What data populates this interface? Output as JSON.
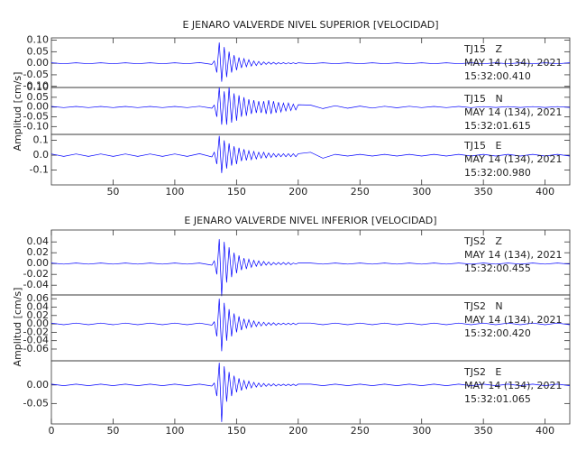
{
  "chart_data": [
    {
      "type": "line",
      "title": "E JENARO VALVERDE NIVEL SUPERIOR [VELOCIDAD]",
      "ylabel": "Amplitud [cm/s]",
      "color": "#0000ff",
      "xlim": [
        0,
        420
      ],
      "xticks": [
        50,
        100,
        150,
        200,
        250,
        300,
        350,
        400
      ],
      "x": [
        0,
        10,
        20,
        30,
        40,
        50,
        60,
        70,
        80,
        90,
        100,
        110,
        120,
        130,
        132,
        134,
        136,
        138,
        140,
        142,
        144,
        146,
        148,
        150,
        152,
        154,
        156,
        158,
        160,
        162,
        164,
        166,
        168,
        170,
        172,
        174,
        176,
        178,
        180,
        182,
        184,
        186,
        188,
        190,
        192,
        194,
        196,
        198,
        200,
        210,
        220,
        230,
        240,
        250,
        260,
        270,
        280,
        290,
        300,
        310,
        320,
        330,
        340,
        350,
        360,
        370,
        380,
        390,
        400,
        410,
        420
      ],
      "panels": [
        {
          "ylim": [
            -0.105,
            0.11
          ],
          "yticks": [
            {
              "value": -0.1,
              "label": "-0.10"
            },
            -0.05,
            {
              "value": 0,
              "label": "0.00"
            },
            0.05,
            {
              "value": 0.1,
              "label": "0.10"
            }
          ],
          "annotations": [
            "TJ15   Z",
            "MAY 14 (134), 2021",
            "15:32:00.410"
          ],
          "values": [
            0.002,
            -0.002,
            0.002,
            -0.002,
            0.002,
            -0.002,
            0.002,
            -0.002,
            0.002,
            -0.002,
            0.002,
            -0.002,
            0.003,
            -0.005,
            0.01,
            -0.04,
            0.09,
            -0.08,
            0.07,
            -0.06,
            0.05,
            -0.04,
            0.035,
            -0.03,
            0.025,
            -0.02,
            0.02,
            -0.015,
            0.015,
            -0.012,
            0.01,
            -0.01,
            0.008,
            -0.007,
            0.006,
            -0.005,
            0.005,
            -0.004,
            0.004,
            -0.004,
            0.003,
            -0.003,
            0.003,
            -0.003,
            0.002,
            -0.002,
            0.002,
            -0.002,
            0.002,
            -0.002,
            0.002,
            -0.002,
            0.002,
            -0.002,
            0.002,
            -0.002,
            0.002,
            -0.002,
            0.002,
            -0.002,
            0.002,
            -0.002,
            0.002,
            -0.002,
            0.002,
            -0.002,
            0.002,
            -0.002,
            0.002,
            -0.002,
            0.002
          ]
        },
        {
          "ylim": [
            -0.14,
            0.1
          ],
          "yticks": [
            {
              "value": -0.1,
              "label": "-0.10"
            },
            -0.05,
            {
              "value": 0,
              "label": "0.00"
            },
            0.05,
            {
              "value": 0.1,
              "label": "0.10"
            }
          ],
          "annotations": [
            "TJ15   N",
            "MAY 14 (134), 2021",
            "15:32:01.615"
          ],
          "values": [
            0.003,
            -0.003,
            0.003,
            -0.003,
            0.003,
            -0.003,
            0.003,
            -0.003,
            0.003,
            -0.003,
            0.003,
            -0.003,
            0.004,
            -0.006,
            0.01,
            -0.05,
            0.1,
            -0.09,
            0.08,
            -0.09,
            0.1,
            -0.08,
            0.07,
            -0.07,
            0.06,
            -0.05,
            0.05,
            -0.045,
            0.04,
            -0.035,
            0.035,
            -0.03,
            0.03,
            -0.03,
            0.03,
            -0.035,
            0.035,
            -0.035,
            0.03,
            -0.03,
            0.025,
            -0.025,
            0.02,
            -0.02,
            0.02,
            -0.018,
            0.015,
            -0.015,
            0.012,
            0.01,
            -0.008,
            0.007,
            -0.006,
            0.005,
            -0.005,
            0.004,
            -0.004,
            0.004,
            -0.003,
            0.003,
            -0.003,
            0.003,
            -0.003,
            0.002,
            -0.002,
            0.002,
            -0.002,
            0.002,
            -0.002,
            0.002,
            -0.002
          ]
        },
        {
          "ylim": [
            -0.2,
            0.14
          ],
          "yticks": [
            -0.1,
            {
              "value": 0,
              "label": "0.0"
            },
            0.1
          ],
          "annotations": [
            "TJ15   E",
            "MAY 14 (134), 2021",
            "15:32:00.980"
          ],
          "values": [
            0.008,
            -0.008,
            0.008,
            -0.008,
            0.008,
            -0.008,
            0.008,
            -0.008,
            0.008,
            -0.008,
            0.008,
            -0.008,
            0.01,
            -0.012,
            0.02,
            -0.06,
            0.13,
            -0.12,
            0.1,
            -0.09,
            0.08,
            -0.07,
            0.06,
            -0.06,
            0.05,
            -0.04,
            0.04,
            -0.035,
            0.03,
            -0.03,
            0.025,
            -0.025,
            0.02,
            -0.02,
            0.02,
            -0.018,
            0.015,
            -0.015,
            0.012,
            -0.012,
            0.01,
            -0.01,
            0.01,
            -0.01,
            0.01,
            -0.01,
            0.01,
            -0.01,
            0.01,
            0.02,
            -0.02,
            0.006,
            -0.006,
            0.006,
            -0.006,
            0.006,
            -0.006,
            0.006,
            -0.006,
            0.006,
            -0.006,
            0.006,
            -0.006,
            0.006,
            -0.006,
            0.006,
            -0.006,
            0.006,
            -0.006,
            0.006,
            -0.006
          ]
        }
      ]
    },
    {
      "type": "line",
      "title": "E JENARO VALVERDE NIVEL INFERIOR [VELOCIDAD]",
      "ylabel": "Amplitud [cm/s]",
      "color": "#0000ff",
      "xlim": [
        0,
        420
      ],
      "xticks": [
        0,
        50,
        100,
        150,
        200,
        250,
        300,
        350,
        400
      ],
      "x": [
        0,
        10,
        20,
        30,
        40,
        50,
        60,
        70,
        80,
        90,
        100,
        110,
        120,
        130,
        132,
        134,
        136,
        138,
        140,
        142,
        144,
        146,
        148,
        150,
        152,
        154,
        156,
        158,
        160,
        162,
        164,
        166,
        168,
        170,
        172,
        174,
        176,
        178,
        180,
        182,
        184,
        186,
        188,
        190,
        192,
        194,
        196,
        198,
        200,
        210,
        220,
        230,
        240,
        250,
        260,
        270,
        280,
        290,
        300,
        310,
        320,
        330,
        340,
        350,
        360,
        370,
        380,
        390,
        400,
        410,
        420
      ],
      "panels": [
        {
          "ylim": [
            -0.058,
            0.062
          ],
          "yticks": [
            -0.04,
            -0.02,
            {
              "value": 0,
              "label": "0.00"
            },
            0.02,
            0.04
          ],
          "annotations": [
            "TJS2   Z",
            "MAY 14 (134), 2021",
            "15:32:00.455"
          ],
          "values": [
            0.001,
            -0.001,
            0.001,
            -0.001,
            0.001,
            -0.001,
            0.001,
            -0.001,
            0.001,
            -0.001,
            0.001,
            -0.001,
            0.001,
            -0.003,
            0.005,
            -0.02,
            0.045,
            -0.06,
            0.04,
            -0.035,
            0.03,
            -0.025,
            0.02,
            -0.018,
            0.015,
            -0.012,
            0.01,
            -0.01,
            0.008,
            -0.007,
            0.006,
            -0.005,
            0.005,
            -0.004,
            0.004,
            -0.003,
            0.003,
            -0.003,
            0.002,
            -0.002,
            0.002,
            -0.002,
            0.002,
            -0.002,
            0.002,
            -0.002,
            0.001,
            -0.001,
            0.001,
            0.001,
            -0.001,
            0.001,
            -0.001,
            0.001,
            -0.001,
            0.001,
            -0.001,
            0.001,
            -0.001,
            0.001,
            -0.001,
            0.001,
            -0.001,
            0.001,
            -0.001,
            0.001,
            -0.001,
            0.001,
            -0.001,
            0.001,
            -0.001
          ]
        },
        {
          "ylim": [
            -0.088,
            0.069
          ],
          "yticks": [
            -0.06,
            -0.04,
            -0.02,
            {
              "value": 0,
              "label": "0.00"
            },
            0.02,
            0.04,
            0.06
          ],
          "annotations": [
            "TJS2   N",
            "MAY 14 (134), 2021",
            "15:32:00.420"
          ],
          "values": [
            0.002,
            -0.002,
            0.002,
            -0.002,
            0.002,
            -0.002,
            0.002,
            -0.002,
            0.002,
            -0.002,
            0.002,
            -0.002,
            0.002,
            -0.003,
            0.005,
            -0.03,
            0.06,
            -0.065,
            0.05,
            -0.04,
            0.035,
            -0.03,
            0.025,
            -0.02,
            0.018,
            -0.015,
            0.012,
            -0.01,
            0.01,
            -0.008,
            0.007,
            -0.006,
            0.005,
            -0.005,
            0.004,
            -0.004,
            0.003,
            -0.003,
            0.003,
            -0.003,
            0.002,
            -0.002,
            0.002,
            -0.002,
            0.002,
            -0.002,
            0.002,
            -0.002,
            0.002,
            0.002,
            -0.002,
            0.002,
            -0.002,
            0.002,
            -0.002,
            0.002,
            -0.002,
            0.002,
            -0.002,
            0.002,
            -0.002,
            0.002,
            -0.002,
            0.002,
            -0.002,
            0.002,
            -0.002,
            0.002,
            -0.002,
            0.002,
            -0.002
          ]
        },
        {
          "ylim": [
            -0.105,
            0.065
          ],
          "yticks": [
            -0.05,
            {
              "value": 0,
              "label": "0.00"
            }
          ],
          "annotations": [
            "TJS2   E",
            "MAY 14 (134), 2021",
            "15:32:01.065"
          ],
          "values": [
            0.002,
            -0.002,
            0.002,
            -0.002,
            0.002,
            -0.002,
            0.002,
            -0.002,
            0.002,
            -0.002,
            0.002,
            -0.002,
            0.002,
            -0.003,
            0.005,
            -0.03,
            0.06,
            -0.1,
            0.05,
            -0.045,
            0.035,
            -0.03,
            0.025,
            -0.02,
            0.018,
            -0.015,
            0.012,
            -0.01,
            0.01,
            -0.008,
            0.007,
            -0.006,
            0.005,
            -0.005,
            0.004,
            -0.004,
            0.003,
            -0.003,
            0.003,
            -0.003,
            0.002,
            -0.002,
            0.002,
            -0.002,
            0.002,
            -0.002,
            0.002,
            -0.002,
            0.002,
            0.002,
            -0.002,
            0.002,
            -0.002,
            0.002,
            -0.002,
            0.002,
            -0.002,
            0.002,
            -0.002,
            0.002,
            -0.002,
            0.002,
            -0.002,
            0.002,
            -0.002,
            0.002,
            -0.002,
            0.002,
            -0.002,
            0.002,
            -0.002
          ]
        }
      ]
    }
  ]
}
